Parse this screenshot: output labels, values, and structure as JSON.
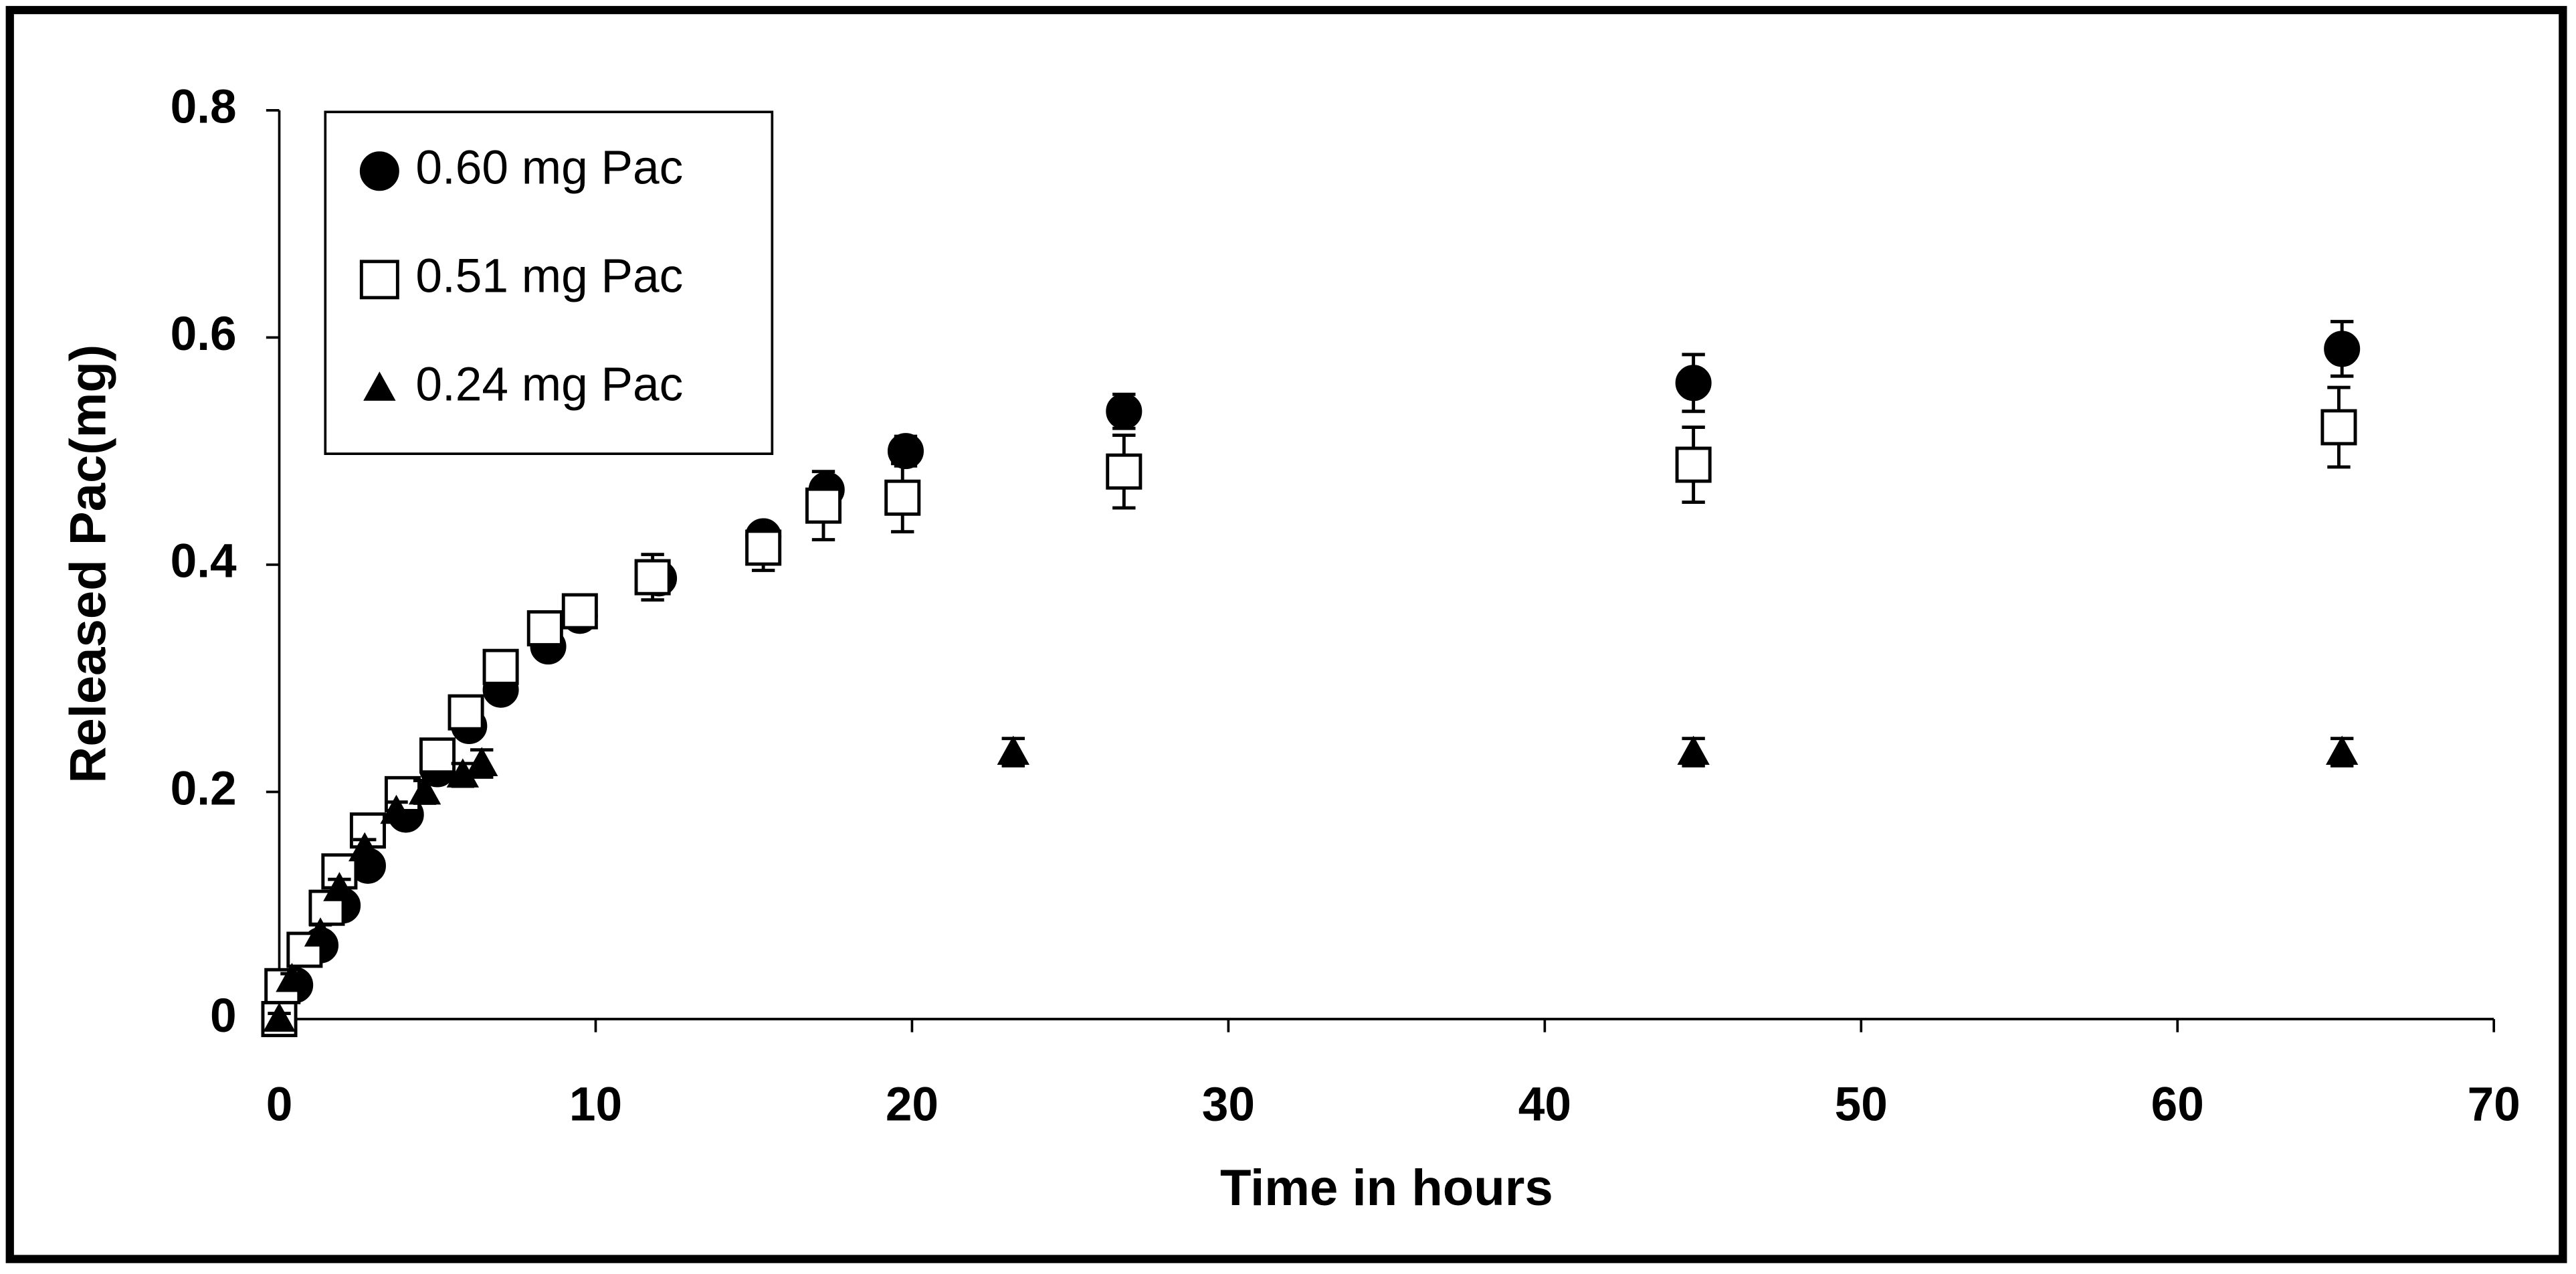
{
  "chart_data": {
    "type": "scatter",
    "x_label": "Time in hours",
    "y_label": "Released Pac(mg)",
    "xlim": [
      0,
      70
    ],
    "xticks": [
      0,
      10,
      20,
      30,
      40,
      50,
      60,
      70
    ],
    "ylim": [
      0,
      0.8
    ],
    "yticks": [
      0,
      0.2,
      0.4,
      0.6,
      0.8
    ],
    "grid": false,
    "legend": "upper left",
    "series": [
      {
        "name": "0.60 mg Pac",
        "color": "#000000",
        "marker": "circle",
        "x": [
          0,
          0.5,
          1.3,
          2,
          2.8,
          4,
          5,
          6,
          7,
          8.5,
          9.5,
          12,
          15.3,
          17.3,
          19.8,
          26.7,
          44.7,
          65.2
        ],
        "values": [
          0,
          0.03,
          0.065,
          0.1,
          0.135,
          0.18,
          0.22,
          0.258,
          0.29,
          0.328,
          0.355,
          0.388,
          0.425,
          0.466,
          0.5,
          0.535,
          0.56,
          0.59
        ],
        "errors": [
          0.005,
          0.005,
          0.005,
          0.005,
          0.005,
          0.005,
          0.005,
          0.008,
          0.008,
          0.008,
          0.01,
          0.01,
          0.01,
          0.01,
          0.013,
          0.015,
          0.025,
          0.024
        ]
      },
      {
        "name": "0.51 mg Pac",
        "color": "#ffffff",
        "marker": "square",
        "x": [
          0,
          0.1,
          0.8,
          1.5,
          1.9,
          2.8,
          3.9,
          5,
          5.9,
          7,
          8.4,
          9.5,
          11.8,
          15.3,
          17.2,
          19.7,
          26.7,
          44.7,
          65.1
        ],
        "values": [
          0,
          0.029,
          0.061,
          0.098,
          0.13,
          0.166,
          0.198,
          0.232,
          0.27,
          0.31,
          0.344,
          0.359,
          0.389,
          0.415,
          0.452,
          0.459,
          0.482,
          0.488,
          0.521
        ],
        "errors": [
          0.005,
          0.005,
          0.005,
          0.005,
          0.005,
          0.008,
          0.008,
          0.008,
          0.008,
          0.01,
          0.01,
          0.01,
          0.02,
          0.02,
          0.03,
          0.03,
          0.032,
          0.033,
          0.035
        ]
      },
      {
        "name": "0.24 mg Pac",
        "color": "#000000",
        "marker": "triangle",
        "x": [
          0,
          0.4,
          1.3,
          1.9,
          2.7,
          3.7,
          4.6,
          5.8,
          6.4,
          23.2,
          44.7,
          65.2
        ],
        "values": [
          0,
          0.035,
          0.075,
          0.115,
          0.15,
          0.183,
          0.2,
          0.215,
          0.225,
          0.235,
          0.235,
          0.235
        ],
        "errors": [
          0.005,
          0.005,
          0.008,
          0.008,
          0.008,
          0.008,
          0.01,
          0.01,
          0.012,
          0.012,
          0.012,
          0.012
        ]
      }
    ]
  }
}
